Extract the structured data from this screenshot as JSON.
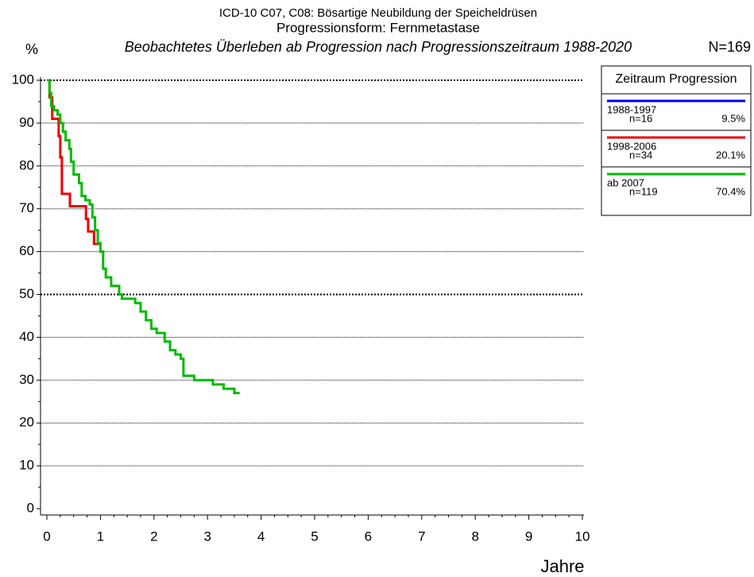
{
  "chart_data": {
    "type": "step",
    "title": "ICD-10 C07, C08: Bösartige Neubildung der Speicheldrüsen",
    "subtitle": "Progressionsform: Fernmetastase",
    "description": "Beobachtetes Überleben ab Progression nach Progressionszeitraum 1988-2020",
    "total": "N=169",
    "y_label": "%",
    "x_label": "Jahre",
    "legend_title": "Zeitraum Progression",
    "xlim": [
      0,
      10
    ],
    "xticks": [
      0,
      1,
      2,
      3,
      4,
      5,
      6,
      7,
      8,
      9,
      10
    ],
    "ylim": [
      0,
      100
    ],
    "yticks": [
      0,
      10,
      20,
      30,
      40,
      50,
      60,
      70,
      80,
      90,
      100
    ],
    "grid": true,
    "series": [
      {
        "name": "1988-1997",
        "n": "n=16",
        "share": "9.5%",
        "color": "#0000ee",
        "x": [],
        "values": []
      },
      {
        "name": "1998-2006",
        "n": "n=34",
        "share": "20.1%",
        "color": "#ee0000",
        "x": [
          0,
          0.05,
          0.1,
          0.22,
          0.25,
          0.28,
          0.43,
          0.73,
          0.77,
          0.88,
          1.0
        ],
        "values": [
          100,
          96,
          91,
          87,
          82,
          73.5,
          70.6,
          67.6,
          64.7,
          61.8,
          61.8
        ]
      },
      {
        "name": "ab 2007",
        "n": "n=119",
        "share": "70.4%",
        "color": "#00bb00",
        "x": [
          0,
          0.05,
          0.08,
          0.13,
          0.2,
          0.25,
          0.3,
          0.35,
          0.42,
          0.45,
          0.5,
          0.6,
          0.65,
          0.72,
          0.8,
          0.85,
          0.9,
          0.95,
          1.0,
          1.05,
          1.1,
          1.2,
          1.35,
          1.4,
          1.65,
          1.75,
          1.85,
          1.95,
          2.05,
          2.2,
          2.3,
          2.4,
          2.5,
          2.55,
          2.75,
          3.1,
          3.3,
          3.5,
          3.6
        ],
        "values": [
          100,
          97,
          94,
          93,
          92,
          90,
          88,
          86,
          84,
          81,
          78,
          76,
          73,
          72,
          71,
          68,
          65,
          62,
          60,
          56,
          54,
          52,
          50,
          49,
          48,
          46,
          44,
          42,
          41,
          39,
          37,
          36,
          35,
          31,
          30,
          29,
          28,
          27,
          27
        ]
      }
    ]
  }
}
